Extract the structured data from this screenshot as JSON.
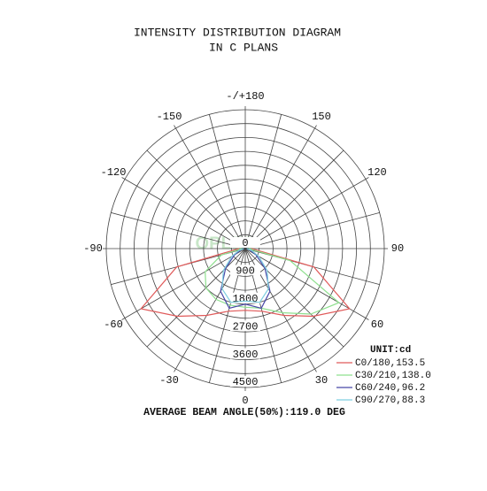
{
  "chart_data": {
    "type": "polar",
    "title": "INTENSITY DISTRIBUTION DIAGRAM",
    "subtitle": "IN C PLANS",
    "watermark": "OPLED",
    "unit_label": "UNIT:cd",
    "footer": "AVERAGE BEAM ANGLE(50%):119.0 DEG",
    "angles": [
      -90,
      -75,
      -60,
      -45,
      -30,
      -15,
      0,
      15,
      30,
      45,
      60,
      75,
      90
    ],
    "angle_ticks": [
      {
        "value": 180,
        "label": "-/+180"
      },
      150,
      120,
      90,
      60,
      30,
      0,
      -30,
      -60,
      -90,
      -120,
      -150
    ],
    "rlim": [
      0,
      4500
    ],
    "rticks": [
      0,
      900,
      1800,
      2700,
      3600,
      4500
    ],
    "grid": true,
    "series": [
      {
        "name": "C0/180,153.5",
        "color": "#e05a5a",
        "values": [
          200,
          2300,
          3900,
          3100,
          2500,
          2100,
          2000,
          2100,
          2500,
          3100,
          3900,
          2300,
          200
        ]
      },
      {
        "name": "C30/210,138.0",
        "color": "#8fe08f",
        "values": [
          100,
          800,
          1500,
          1800,
          1900,
          1900,
          1900,
          2000,
          2400,
          3000,
          3500,
          1500,
          100
        ]
      },
      {
        "name": "C60/240,96.2",
        "color": "#4848a8",
        "values": [
          50,
          150,
          400,
          900,
          1600,
          2000,
          1800,
          2000,
          1600,
          900,
          400,
          150,
          50
        ]
      },
      {
        "name": "C90/270,88.3",
        "color": "#7fcfe0",
        "values": [
          50,
          200,
          500,
          1000,
          1500,
          1800,
          1700,
          1800,
          1500,
          1000,
          500,
          200,
          50
        ]
      }
    ]
  }
}
